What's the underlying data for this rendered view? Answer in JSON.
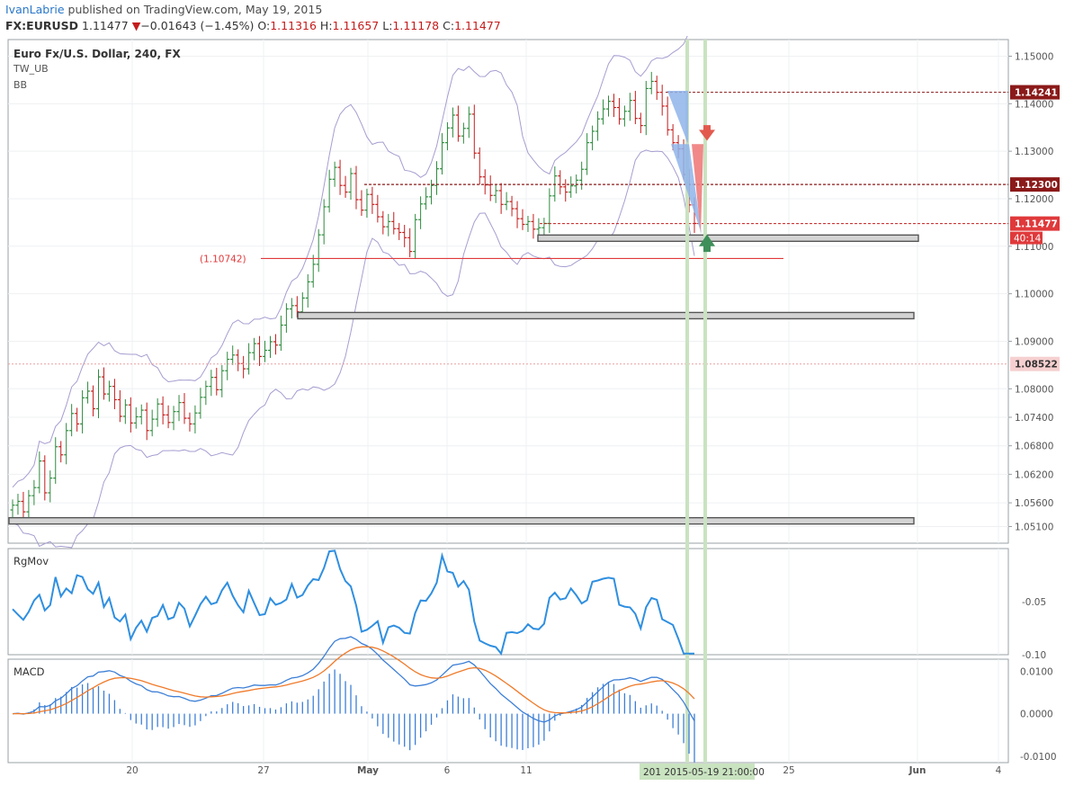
{
  "header": {
    "author": "IvanLabrie",
    "published_text": " published on TradingView.com, May 19, 2015",
    "symbol": "FX:EURUSD",
    "last": "1.11477",
    "change_arrow": "▼",
    "change": "−0.01643 (−1.45%)",
    "open_label": "O:",
    "open": "1.11316",
    "high_label": "H:",
    "high": "1.11657",
    "low_label": "L:",
    "low": "1.11178",
    "close_label": "C:",
    "close": "1.11477"
  },
  "colors": {
    "up": "#2e8b3e",
    "down": "#c41c1c",
    "bb": "#a79dd0",
    "blue": "#3d7fd6",
    "orange": "#f07a2a",
    "grid": "#eef0f3",
    "axis_text": "#555555"
  },
  "chart_data": [
    {
      "type": "line",
      "title": "Euro Fx/U.S. Dollar, 240, FX",
      "indicators": [
        "TW_UB",
        "BB"
      ],
      "x_tick_labels": [
        "20",
        "27",
        "May",
        "6",
        "11",
        "25",
        "Jun",
        "4"
      ],
      "date_range": [
        "2015-04-14",
        "2015-05-19"
      ],
      "crosshair_label": "201 2015-05-19 21:00:00",
      "y_tick_labels": [
        "1.15000",
        "1.14000",
        "1.13000",
        "1.12000",
        "1.11000",
        "1.10000",
        "1.09000",
        "1.08000",
        "1.07400",
        "1.06800",
        "1.06200",
        "1.05600",
        "1.05100"
      ],
      "ylim": [
        1.0475,
        1.1535
      ],
      "price_tags": [
        {
          "value": 1.14241,
          "label": "1.14241",
          "style": "dark"
        },
        {
          "value": 1.123,
          "label": "1.12300",
          "style": "dark"
        },
        {
          "value": 1.11477,
          "label": "1.11477",
          "style": "red"
        },
        {
          "value": 1.08522,
          "label": "1.08522",
          "style": "pink"
        }
      ],
      "countdown": "40:14",
      "level_label": "(1.10742)",
      "level_value": 1.10742,
      "support_zones": [
        1.1117,
        1.0954,
        1.0522
      ],
      "close_series": [
        1.0555,
        1.0563,
        1.0541,
        1.0575,
        1.0592,
        1.0648,
        1.0581,
        1.0612,
        1.0678,
        1.0661,
        1.0712,
        1.0748,
        1.0726,
        1.0781,
        1.0795,
        1.0758,
        1.0825,
        1.0789,
        1.0805,
        1.0777,
        1.0742,
        1.0766,
        1.0728,
        1.0741,
        1.0755,
        1.0712,
        1.0736,
        1.0768,
        1.0745,
        1.0729,
        1.0752,
        1.0771,
        1.0738,
        1.0726,
        1.0749,
        1.0782,
        1.0805,
        1.0824,
        1.0798,
        1.0838,
        1.0862,
        1.0871,
        1.0853,
        1.0842,
        1.0876,
        1.0895,
        1.0868,
        1.0881,
        1.0899,
        1.0892,
        1.0934,
        1.0968,
        1.0975,
        1.0962,
        1.0991,
        1.1025,
        1.1062,
        1.1124,
        1.1183,
        1.1241,
        1.1266,
        1.1228,
        1.1214,
        1.1253,
        1.1198,
        1.1176,
        1.1209,
        1.1188,
        1.1162,
        1.1141,
        1.1152,
        1.1137,
        1.1129,
        1.1118,
        1.1089,
        1.1156,
        1.1189,
        1.1204,
        1.1228,
        1.1263,
        1.1318,
        1.1349,
        1.1376,
        1.1332,
        1.1348,
        1.1378,
        1.1296,
        1.1246,
        1.1229,
        1.1207,
        1.1217,
        1.1188,
        1.1194,
        1.1179,
        1.1158,
        1.1146,
        1.1152,
        1.1136,
        1.1139,
        1.1148,
        1.1206,
        1.1248,
        1.1225,
        1.1214,
        1.1227,
        1.1239,
        1.1262,
        1.1318,
        1.1342,
        1.1368,
        1.1389,
        1.1405,
        1.1392,
        1.1368,
        1.1384,
        1.1407,
        1.1369,
        1.1354,
        1.1432,
        1.1447,
        1.1424,
        1.1395,
        1.1345,
        1.1318,
        1.1305,
        1.1251,
        1.1187,
        1.1148
      ],
      "rgmov": {
        "title": "RgMov",
        "y_tick_labels": [
          "-0.05",
          "-0.10"
        ],
        "ylim": [
          -0.1,
          0.0
        ]
      },
      "macd": {
        "title": "MACD",
        "y_tick_labels": [
          "0.0100",
          "0.0000",
          "-0.0100"
        ],
        "ylim": [
          -0.0115,
          0.0128
        ]
      }
    }
  ]
}
